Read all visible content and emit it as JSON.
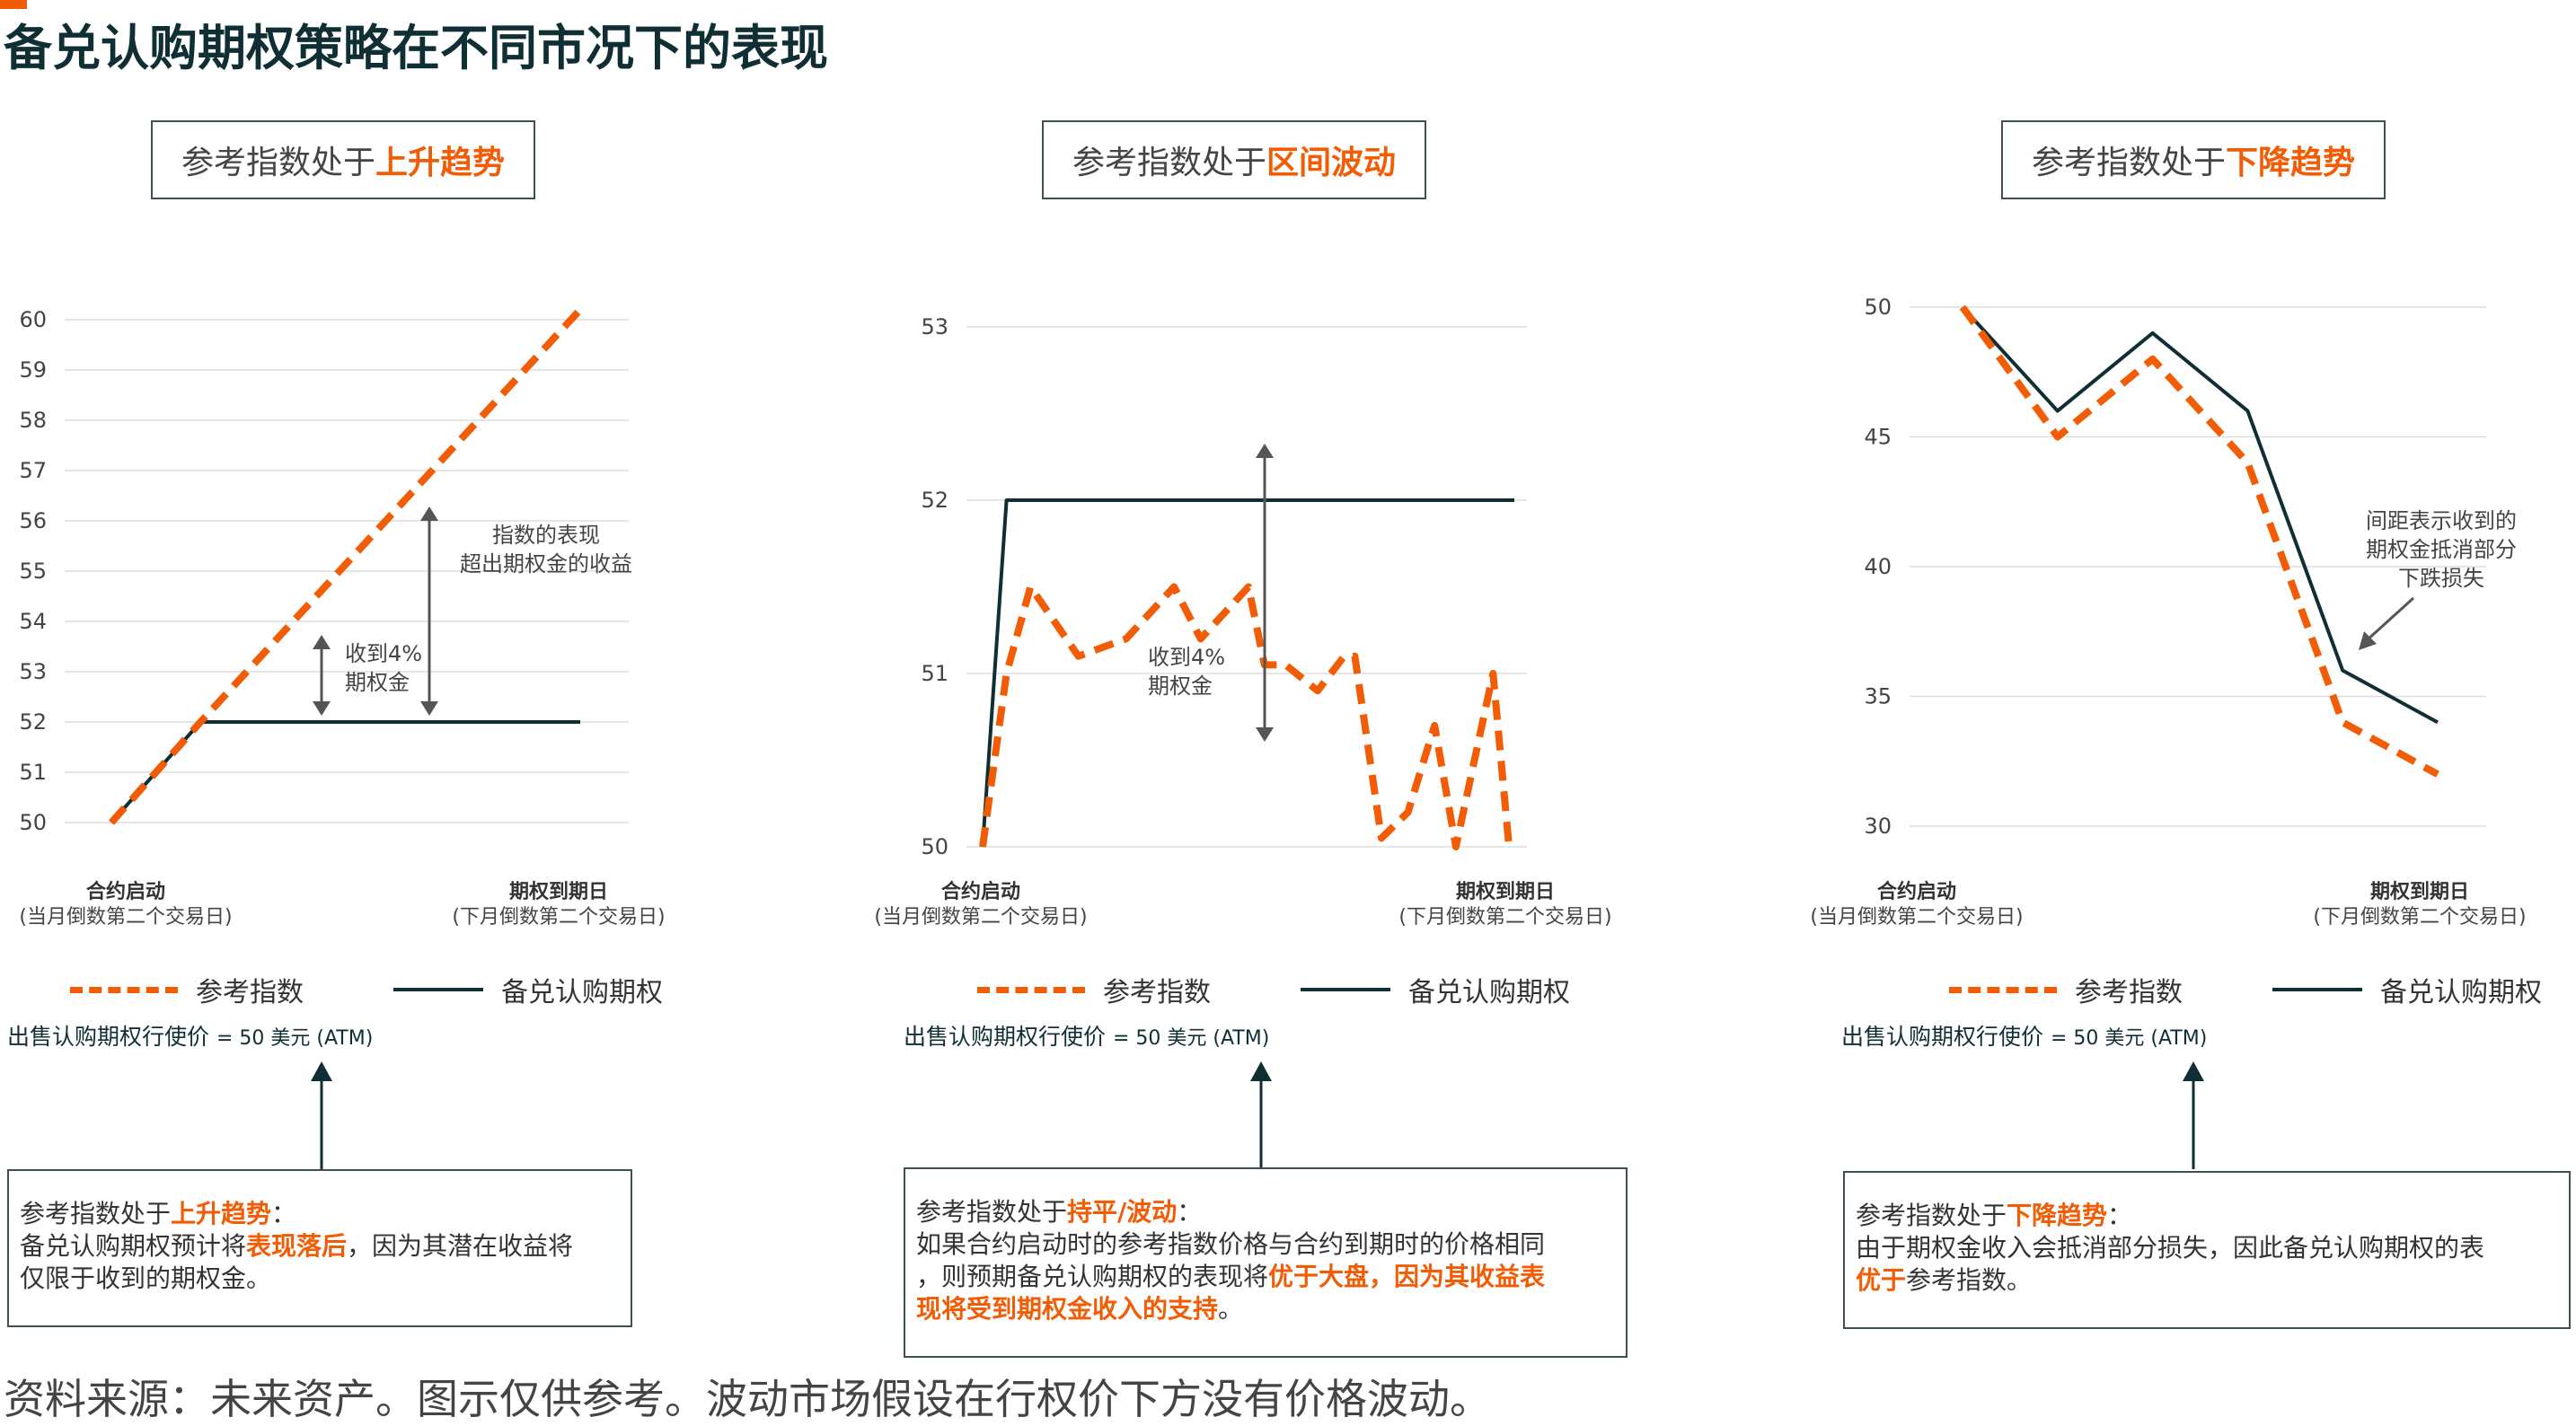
{
  "title": "备兑认购期权策略在不同市况下的表现",
  "source": "资料来源：未来资产。图示仅供参考。波动市场假设在行权价下方没有价格波动。",
  "colors": {
    "accent": "#f25c05",
    "dark": "#0f2f35",
    "grid": "#dddddd"
  },
  "legend": {
    "index": "参考指数",
    "covered_call": "备兑认购期权"
  },
  "x_labels": {
    "start_title": "合约启动",
    "start_sub": "(当月倒数第二个交易日)",
    "end_title": "期权到期日",
    "end_sub": "(下月倒数第二个交易日)"
  },
  "strike_label_main": "出售认购期权行使价 ",
  "strike_label_value": "= 50 美元 (ATM)",
  "panels": [
    {
      "header_prefix": "参考指数处于",
      "header_emph": "上升趋势",
      "note_prefix": "参考指数处于",
      "note_emph": "上升趋势",
      "note_colon": "：",
      "note_line2_a": "备兑认购期权预计将",
      "note_line2_b": "表现落后",
      "note_line2_c": "，因为其潜在收益将",
      "note_line3": "仅限于收到的期权金。",
      "annotations": {
        "premium_l1": "收到4%",
        "premium_l2": "期权金",
        "excess_l1": "指数的表现",
        "excess_l2": "超出期权金的收益"
      }
    },
    {
      "header_prefix": "参考指数处于",
      "header_emph": "区间波动",
      "note_prefix": "参考指数处于",
      "note_emph": "持平/波动",
      "note_colon": "：",
      "note_line2": "如果合约启动时的参考指数价格与合约到期时的价格相同",
      "note_line3_a": "，则预期备兑认购期权的表现将",
      "note_line3_b": "优于大盘，因为其收益表",
      "note_line4": "现将受到期权金收入的支持",
      "note_line4_end": "。",
      "annotations": {
        "premium_l1": "收到4%",
        "premium_l2": "期权金"
      }
    },
    {
      "header_prefix": "参考指数处于",
      "header_emph": "下降趋势",
      "note_prefix": "参考指数处于",
      "note_emph": "下降趋势",
      "note_colon": "：",
      "note_line2": "由于期权金收入会抵消部分损失，因此备兑认购期权的表",
      "note_line3_a": "优于",
      "note_line3_b": "参考指数。",
      "annotations": {
        "gap_l1": "间距表示收到的",
        "gap_l2": "期权金抵消部分",
        "gap_l3": "下跌损失"
      }
    }
  ],
  "chart_data": [
    {
      "type": "line",
      "title": "参考指数处于上升趋势",
      "yticks": [
        50,
        51,
        52,
        53,
        54,
        55,
        56,
        57,
        58,
        59,
        60
      ],
      "ylim": [
        50,
        60
      ],
      "series": [
        {
          "name": "参考指数",
          "style": "dashed",
          "x": [
            0,
            0.19,
            1
          ],
          "y": [
            50,
            52,
            60.2
          ]
        },
        {
          "name": "备兑认购期权",
          "style": "solid",
          "x": [
            0,
            0.19,
            1
          ],
          "y": [
            50,
            52,
            52
          ]
        }
      ]
    },
    {
      "type": "line",
      "title": "参考指数处于区间波动",
      "yticks": [
        50,
        51,
        52,
        53
      ],
      "ylim": [
        50,
        53
      ],
      "series": [
        {
          "name": "参考指数",
          "style": "dashed",
          "x": [
            0,
            0.045,
            0.09,
            0.18,
            0.27,
            0.36,
            0.41,
            0.5,
            0.53,
            0.57,
            0.63,
            0.68,
            0.7,
            0.75,
            0.8,
            0.85,
            0.89,
            0.96,
            0.99
          ],
          "y": [
            50,
            51,
            51.5,
            51.1,
            51.2,
            51.5,
            51.2,
            51.5,
            51.05,
            51.05,
            50.9,
            51.1,
            51.1,
            50.05,
            50.2,
            50.7,
            50,
            51,
            50
          ]
        },
        {
          "name": "备兑认购期权",
          "style": "solid",
          "x": [
            0,
            0.045,
            1
          ],
          "y": [
            50,
            52,
            52
          ]
        }
      ]
    },
    {
      "type": "line",
      "title": "参考指数处于下降趋势",
      "yticks": [
        30,
        35,
        40,
        45,
        50
      ],
      "ylim": [
        30,
        50
      ],
      "series": [
        {
          "name": "参考指数",
          "style": "dashed",
          "x": [
            0,
            0.2,
            0.4,
            0.6,
            0.8,
            1
          ],
          "y": [
            50,
            45,
            48,
            44,
            34,
            32
          ]
        },
        {
          "name": "备兑认购期权",
          "style": "solid",
          "x": [
            0,
            0.2,
            0.4,
            0.6,
            0.8,
            1
          ],
          "y": [
            50,
            46,
            49,
            46,
            36,
            34
          ]
        }
      ]
    }
  ]
}
